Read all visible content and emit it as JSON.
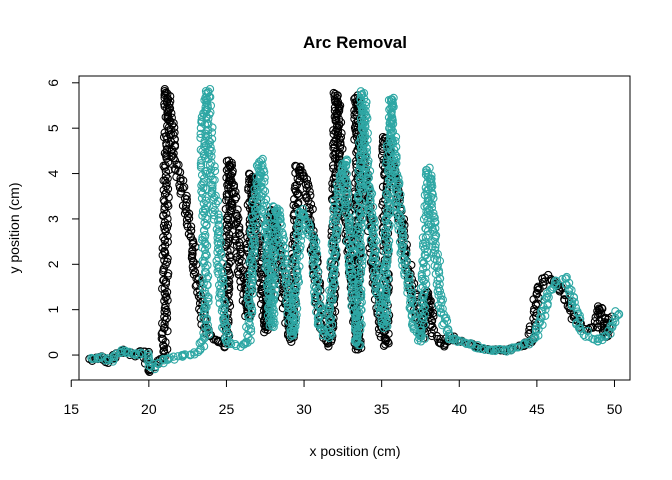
{
  "chart_data": {
    "type": "scatter",
    "title": "Arc Removal",
    "xlabel": "x position (cm)",
    "ylabel": "y position (cm)",
    "xlim": [
      15.5,
      51.0
    ],
    "ylim": [
      -0.55,
      6.15
    ],
    "x_ticks": [
      15,
      20,
      25,
      30,
      35,
      40,
      45,
      50
    ],
    "y_ticks": [
      0,
      1,
      2,
      3,
      4,
      5,
      6
    ],
    "x_tick_labels": [
      "15",
      "20",
      "25",
      "30",
      "35",
      "40",
      "45",
      "50"
    ],
    "y_tick_labels": [
      "0",
      "1",
      "2",
      "3",
      "4",
      "5",
      "6"
    ],
    "grid": false,
    "marker": "open-circle",
    "series": [
      {
        "color": "#000000",
        "path": [
          [
            16.2,
            -0.1
          ],
          [
            17.0,
            -0.05
          ],
          [
            17.5,
            -0.15
          ],
          [
            18.2,
            0.1
          ],
          [
            19.0,
            0.0
          ],
          [
            19.8,
            0.1
          ],
          [
            20.0,
            -0.35
          ],
          [
            20.6,
            -0.2
          ],
          [
            21.0,
            -0.05
          ],
          [
            21.2,
            5.85
          ],
          [
            21.4,
            5.2
          ],
          [
            21.6,
            4.4
          ],
          [
            22.2,
            3.6
          ],
          [
            22.8,
            2.4
          ],
          [
            23.3,
            1.3
          ],
          [
            23.6,
            0.6
          ],
          [
            24.4,
            0.3
          ],
          [
            25.0,
            0.2
          ],
          [
            25.2,
            4.3
          ],
          [
            25.6,
            3.0
          ],
          [
            26.0,
            1.6
          ],
          [
            26.4,
            0.8
          ],
          [
            26.6,
            4.0
          ],
          [
            27.0,
            2.6
          ],
          [
            27.4,
            1.2
          ],
          [
            27.6,
            0.5
          ],
          [
            28.0,
            3.2
          ],
          [
            28.4,
            2.0
          ],
          [
            28.8,
            1.0
          ],
          [
            29.2,
            0.3
          ],
          [
            29.6,
            4.2
          ],
          [
            30.2,
            3.8
          ],
          [
            30.6,
            2.4
          ],
          [
            31.0,
            1.0
          ],
          [
            31.4,
            0.2
          ],
          [
            31.8,
            0.4
          ],
          [
            32.1,
            5.8
          ],
          [
            32.5,
            4.0
          ],
          [
            32.9,
            2.4
          ],
          [
            33.3,
            0.9
          ],
          [
            33.5,
            0.1
          ],
          [
            33.4,
            5.7
          ],
          [
            33.8,
            4.5
          ],
          [
            34.2,
            3.0
          ],
          [
            34.6,
            1.6
          ],
          [
            35.0,
            0.5
          ],
          [
            35.3,
            0.2
          ],
          [
            35.2,
            4.8
          ],
          [
            35.8,
            4.0
          ],
          [
            36.4,
            2.6
          ],
          [
            37.0,
            1.4
          ],
          [
            37.4,
            0.8
          ],
          [
            37.6,
            0.4
          ],
          [
            38.0,
            1.4
          ],
          [
            38.4,
            0.4
          ],
          [
            39.0,
            0.2
          ],
          [
            39.4,
            0.4
          ],
          [
            40.2,
            0.3
          ],
          [
            41.0,
            0.2
          ],
          [
            42.0,
            0.1
          ],
          [
            43.0,
            0.1
          ],
          [
            44.0,
            0.2
          ],
          [
            44.6,
            0.3
          ],
          [
            45.0,
            1.4
          ],
          [
            45.6,
            1.75
          ],
          [
            46.2,
            1.6
          ],
          [
            46.8,
            1.3
          ],
          [
            47.4,
            0.8
          ],
          [
            48.0,
            0.6
          ],
          [
            48.8,
            0.6
          ],
          [
            49.1,
            1.1
          ],
          [
            49.4,
            0.4
          ],
          [
            49.8,
            0.9
          ]
        ]
      },
      {
        "color": "#2ea7a4",
        "path": [
          [
            16.2,
            -0.1
          ],
          [
            17.0,
            -0.05
          ],
          [
            17.5,
            -0.15
          ],
          [
            18.2,
            0.1
          ],
          [
            19.0,
            0.0
          ],
          [
            19.8,
            0.05
          ],
          [
            20.2,
            -0.3
          ],
          [
            21.0,
            -0.1
          ],
          [
            22.0,
            -0.05
          ],
          [
            23.0,
            0.05
          ],
          [
            23.4,
            0.2
          ],
          [
            23.7,
            0.4
          ],
          [
            23.5,
            5.1
          ],
          [
            23.8,
            5.85
          ],
          [
            24.0,
            4.4
          ],
          [
            24.4,
            2.8
          ],
          [
            24.7,
            1.3
          ],
          [
            25.0,
            0.3
          ],
          [
            25.8,
            0.2
          ],
          [
            26.4,
            0.3
          ],
          [
            26.8,
            3.2
          ],
          [
            27.2,
            4.3
          ],
          [
            27.6,
            2.6
          ],
          [
            27.9,
            0.6
          ],
          [
            28.2,
            3.3
          ],
          [
            28.6,
            2.4
          ],
          [
            29.0,
            1.2
          ],
          [
            29.3,
            0.4
          ],
          [
            29.8,
            3.2
          ],
          [
            30.6,
            2.5
          ],
          [
            31.0,
            0.6
          ],
          [
            31.6,
            0.4
          ],
          [
            32.1,
            3.4
          ],
          [
            32.6,
            4.3
          ],
          [
            33.0,
            2.3
          ],
          [
            33.3,
            0.8
          ],
          [
            33.5,
            0.2
          ],
          [
            33.8,
            5.8
          ],
          [
            34.0,
            4.4
          ],
          [
            34.4,
            2.8
          ],
          [
            34.8,
            1.4
          ],
          [
            35.2,
            0.6
          ],
          [
            35.6,
            5.7
          ],
          [
            35.8,
            4.4
          ],
          [
            36.2,
            2.8
          ],
          [
            36.7,
            1.5
          ],
          [
            37.2,
            0.5
          ],
          [
            37.6,
            0.3
          ],
          [
            38.0,
            4.1
          ],
          [
            38.4,
            2.6
          ],
          [
            38.8,
            1.2
          ],
          [
            39.2,
            0.4
          ],
          [
            40.0,
            0.3
          ],
          [
            41.0,
            0.2
          ],
          [
            42.0,
            0.1
          ],
          [
            43.0,
            0.1
          ],
          [
            44.0,
            0.2
          ],
          [
            45.0,
            0.4
          ],
          [
            45.6,
            1.2
          ],
          [
            46.2,
            1.6
          ],
          [
            46.8,
            1.7
          ],
          [
            47.3,
            1.2
          ],
          [
            47.8,
            0.6
          ],
          [
            48.4,
            0.4
          ],
          [
            49.0,
            0.3
          ],
          [
            49.6,
            0.5
          ],
          [
            50.0,
            0.8
          ],
          [
            50.3,
            1.0
          ]
        ]
      }
    ]
  }
}
